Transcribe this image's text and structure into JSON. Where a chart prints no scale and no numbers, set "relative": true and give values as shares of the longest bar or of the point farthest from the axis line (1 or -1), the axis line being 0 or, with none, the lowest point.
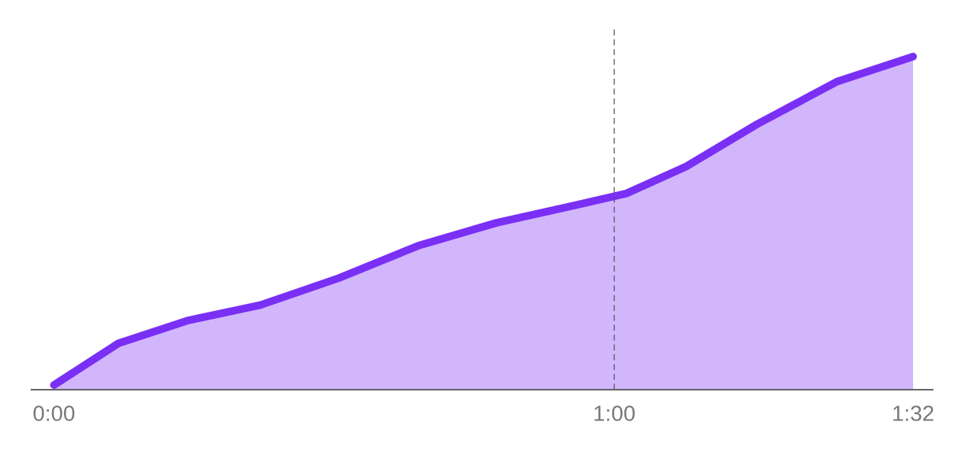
{
  "chart_data": {
    "type": "area",
    "relative": true,
    "xlim": [
      -2.4,
      94.1
    ],
    "xticks": [
      {
        "value": 0,
        "label": "0:00"
      },
      {
        "value": 60,
        "label": "1:00"
      },
      {
        "value": 92,
        "label": "1:32"
      }
    ],
    "series": [
      {
        "color": "#7a2ff5",
        "x": [
          0,
          6.9,
          14.4,
          22.1,
          30.5,
          39,
          47.4,
          55.9,
          61.3,
          67.7,
          75.3,
          83.8,
          92
        ],
        "values": [
          0.014,
          0.139,
          0.208,
          0.254,
          0.335,
          0.432,
          0.501,
          0.554,
          0.589,
          0.67,
          0.797,
          0.924,
          1.0
        ]
      }
    ],
    "ref_lines": [
      {
        "axis": "x",
        "value": 60,
        "color": "#555555",
        "line_style": "dashed"
      }
    ],
    "grid": false,
    "legend": false
  }
}
